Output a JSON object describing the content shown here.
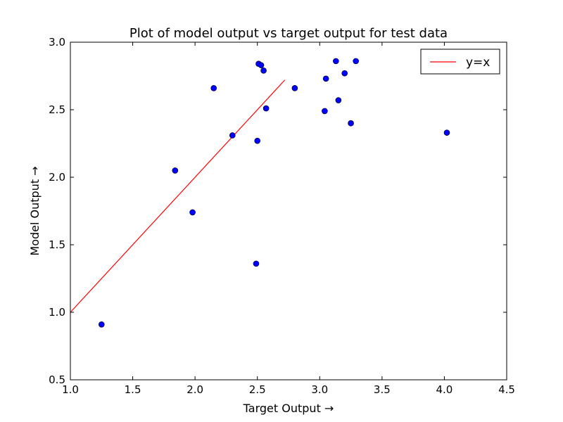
{
  "chart_data": {
    "type": "scatter",
    "title": "Plot of model output vs target output for test data",
    "xlabel": "Target Output →",
    "ylabel": "Model Output →",
    "xlim": [
      1.0,
      4.5
    ],
    "ylim": [
      0.5,
      3.0
    ],
    "xticks": [
      "1.0",
      "1.5",
      "2.0",
      "2.5",
      "3.0",
      "3.5",
      "4.0",
      "4.5"
    ],
    "yticks": [
      "0.5",
      "1.0",
      "1.5",
      "2.0",
      "2.5",
      "3.0"
    ],
    "grid": false,
    "legend_position": "top-right",
    "series": [
      {
        "type": "scatter",
        "color": "#0000ff",
        "points": [
          [
            1.25,
            0.91
          ],
          [
            1.84,
            2.05
          ],
          [
            1.98,
            1.74
          ],
          [
            2.15,
            2.66
          ],
          [
            2.3,
            2.31
          ],
          [
            2.49,
            1.36
          ],
          [
            2.5,
            2.27
          ],
          [
            2.51,
            2.84
          ],
          [
            2.53,
            2.83
          ],
          [
            2.55,
            2.79
          ],
          [
            2.57,
            2.51
          ],
          [
            2.8,
            2.66
          ],
          [
            3.04,
            2.49
          ],
          [
            3.05,
            2.73
          ],
          [
            3.13,
            2.86
          ],
          [
            3.15,
            2.57
          ],
          [
            3.2,
            2.77
          ],
          [
            3.25,
            2.4
          ],
          [
            3.29,
            2.86
          ],
          [
            4.02,
            2.33
          ]
        ]
      },
      {
        "name": "y=x",
        "type": "line",
        "color": "#ff0000",
        "points": [
          [
            1.0,
            1.0
          ],
          [
            2.72,
            2.72
          ]
        ]
      }
    ]
  }
}
